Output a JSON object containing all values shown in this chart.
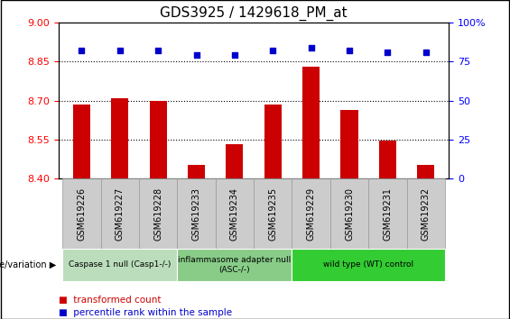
{
  "title": "GDS3925 / 1429618_PM_at",
  "samples": [
    "GSM619226",
    "GSM619227",
    "GSM619228",
    "GSM619233",
    "GSM619234",
    "GSM619235",
    "GSM619229",
    "GSM619230",
    "GSM619231",
    "GSM619232"
  ],
  "bar_values": [
    8.685,
    8.71,
    8.7,
    8.452,
    8.532,
    8.685,
    8.83,
    8.663,
    8.547,
    8.452
  ],
  "percentile_values": [
    82,
    82,
    82,
    79,
    79,
    82,
    84,
    82,
    81,
    81
  ],
  "bar_color": "#cc0000",
  "percentile_color": "#0000cc",
  "ylim_left": [
    8.4,
    9.0
  ],
  "ylim_right": [
    0,
    100
  ],
  "yticks_left": [
    8.4,
    8.55,
    8.7,
    8.85,
    9.0
  ],
  "yticks_right": [
    0,
    25,
    50,
    75,
    100
  ],
  "ytick_labels_right": [
    "0",
    "25",
    "50",
    "75",
    "100%"
  ],
  "hlines": [
    8.55,
    8.7,
    8.85
  ],
  "groups": [
    {
      "label": "Caspase 1 null (Casp1-/-)",
      "start": 0,
      "end": 3,
      "color": "#bbddbb"
    },
    {
      "label": "inflammasome adapter null\n(ASC-/-)",
      "start": 3,
      "end": 6,
      "color": "#88cc88"
    },
    {
      "label": "wild type (WT) control",
      "start": 6,
      "end": 10,
      "color": "#33cc33"
    }
  ],
  "bar_width": 0.45,
  "xlabel_fontsize": 7,
  "title_fontsize": 11,
  "tick_fontsize": 8,
  "label_cell_color": "#cccccc",
  "label_cell_border": "#999999"
}
